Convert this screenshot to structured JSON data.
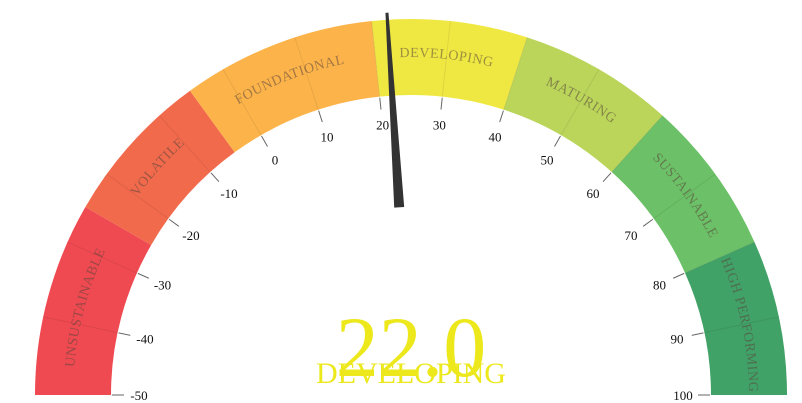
{
  "chart_data": {
    "type": "gauge",
    "min": -50,
    "max": 100,
    "value": 22.0,
    "value_text": "22.0",
    "status": "DEVELOPING",
    "status_color": "#ece81c",
    "needle_color": "#333333",
    "ticks": [
      -50,
      -40,
      -30,
      -20,
      -10,
      0,
      10,
      20,
      30,
      40,
      50,
      60,
      70,
      80,
      90,
      100
    ],
    "tick_labels": [
      "-50",
      "-40",
      "-30",
      "-20",
      "-10",
      "0",
      "10",
      "20",
      "30",
      "40",
      "50",
      "60",
      "70",
      "80",
      "90",
      "100"
    ],
    "bands": [
      {
        "label": "UNSUSTAINABLE",
        "from": -50,
        "to": -25,
        "color": "#ef4a51"
      },
      {
        "label": "VOLATILE",
        "from": -25,
        "to": -5,
        "color": "#f26a4c"
      },
      {
        "label": "FOUNDATIONAL",
        "from": -5,
        "to": 20,
        "color": "#fcb44a"
      },
      {
        "label": "DEVELOPING",
        "from": 20,
        "to": 40,
        "color": "#f0e842"
      },
      {
        "label": "MATURING",
        "from": 40,
        "to": 60,
        "color": "#bad55a"
      },
      {
        "label": "SUSTAINABLE",
        "from": 60,
        "to": 80,
        "color": "#6cc067"
      },
      {
        "label": "HIGH PERFORMING",
        "from": 80,
        "to": 100,
        "color": "#41a267"
      }
    ]
  }
}
